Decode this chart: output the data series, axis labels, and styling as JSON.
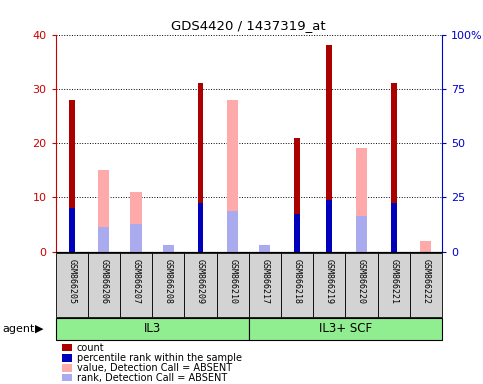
{
  "title": "GDS4420 / 1437319_at",
  "samples": [
    "GSM866205",
    "GSM866206",
    "GSM866207",
    "GSM866208",
    "GSM866209",
    "GSM866210",
    "GSM866217",
    "GSM866218",
    "GSM866219",
    "GSM866220",
    "GSM866221",
    "GSM866222"
  ],
  "groups": [
    {
      "label": "IL3",
      "start": 0,
      "end": 6
    },
    {
      "label": "IL3+ SCF",
      "start": 6,
      "end": 12
    }
  ],
  "red_bars": [
    28,
    0,
    0,
    0,
    31,
    0,
    0,
    21,
    38,
    0,
    31,
    0
  ],
  "blue_bars": [
    8,
    0,
    0,
    0,
    9,
    0,
    0,
    7,
    9.5,
    0,
    9,
    0
  ],
  "pink_bars": [
    0,
    15,
    11,
    0,
    0,
    28,
    1.2,
    0,
    0,
    19,
    0,
    2
  ],
  "lightblue_bars": [
    0,
    4.5,
    5,
    1.2,
    0,
    7.5,
    1.2,
    0,
    0,
    6.5,
    0,
    0
  ],
  "ylim_left": [
    0,
    40
  ],
  "ylim_right": [
    0,
    100
  ],
  "yticks_left": [
    0,
    10,
    20,
    30,
    40
  ],
  "yticks_right": [
    0,
    25,
    50,
    75,
    100
  ],
  "yticklabels_right": [
    "0",
    "25",
    "50",
    "75",
    "100%"
  ],
  "red_color": "#aa0000",
  "blue_color": "#0000bb",
  "pink_color": "#ffaaaa",
  "lightblue_color": "#aaaaee",
  "left_axis_color": "#cc0000",
  "right_axis_color": "#0000cc",
  "group_bg_color": "#90ee90",
  "xticklabel_bg": "#d3d3d3",
  "agent_label": "agent",
  "legend_items": [
    [
      "#aa0000",
      "count"
    ],
    [
      "#0000bb",
      "percentile rank within the sample"
    ],
    [
      "#ffaaaa",
      "value, Detection Call = ABSENT"
    ],
    [
      "#aaaaee",
      "rank, Detection Call = ABSENT"
    ]
  ]
}
